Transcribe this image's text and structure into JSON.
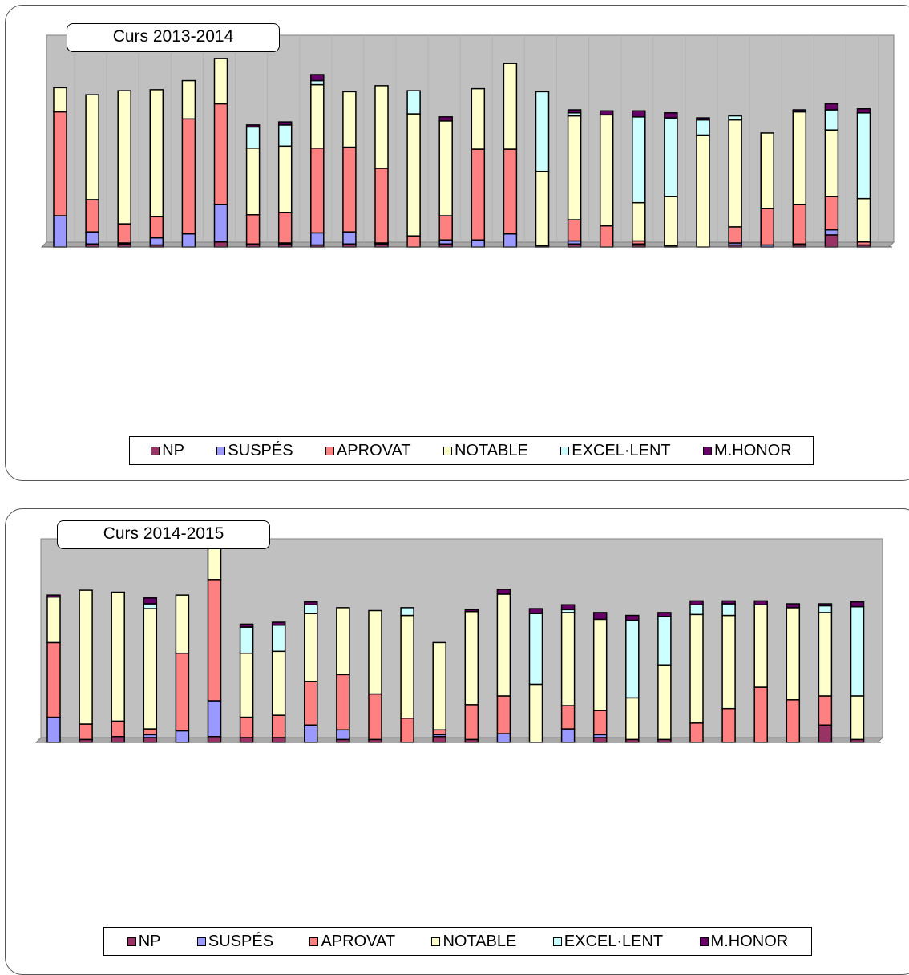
{
  "chart_data": [
    {
      "type": "bar",
      "stacked": true,
      "title": "Curs 2013-2014",
      "legend_position": "bottom",
      "grid": true,
      "ylim": [
        0,
        210
      ],
      "colors": {
        "NP": "#993366",
        "SUSPÉS": "#9999ff",
        "APROVAT": "#ff8080",
        "NOTABLE": "#ffffcc",
        "EXCEL·LENT": "#ccffff",
        "M.HONOR": "#660066"
      },
      "series": [
        {
          "name": "NP",
          "values": [
            0,
            3,
            3,
            2,
            0,
            5,
            3,
            3,
            2,
            3,
            3,
            0,
            3,
            0,
            0,
            0,
            3,
            0,
            2,
            0,
            0,
            2,
            0,
            2,
            12,
            2
          ]
        },
        {
          "name": "SUSPÉS",
          "values": [
            31,
            12,
            1,
            7,
            13,
            37,
            0,
            1,
            12,
            12,
            1,
            0,
            4,
            7,
            13,
            1,
            3,
            0,
            1,
            0,
            0,
            2,
            2,
            1,
            5,
            0
          ]
        },
        {
          "name": "APROVAT",
          "values": [
            103,
            32,
            19,
            21,
            114,
            100,
            29,
            30,
            84,
            84,
            74,
            11,
            24,
            90,
            84,
            0,
            21,
            21,
            3,
            1,
            0,
            16,
            36,
            39,
            33,
            3
          ]
        },
        {
          "name": "NOTABLE",
          "values": [
            24,
            104,
            132,
            126,
            38,
            45,
            66,
            66,
            63,
            55,
            82,
            121,
            94,
            60,
            85,
            74,
            103,
            110,
            38,
            49,
            111,
            106,
            75,
            92,
            66,
            43
          ]
        },
        {
          "name": "EXCEL·LENT",
          "values": [
            0,
            0,
            0,
            0,
            0,
            0,
            21,
            21,
            4,
            0,
            0,
            23,
            0,
            0,
            0,
            79,
            3,
            0,
            85,
            78,
            15,
            4,
            0,
            0,
            20,
            85
          ]
        },
        {
          "name": "M.HONOR",
          "values": [
            0,
            0,
            0,
            0,
            0,
            0,
            2,
            3,
            6,
            0,
            0,
            0,
            4,
            0,
            0,
            0,
            3,
            4,
            6,
            5,
            2,
            0,
            0,
            2,
            6,
            4
          ]
        }
      ]
    },
    {
      "type": "bar",
      "stacked": true,
      "title": "Curs 2014-2015",
      "legend_position": "bottom",
      "grid": false,
      "ylim": [
        0,
        210
      ],
      "colors": {
        "NP": "#993366",
        "SUSPÉS": "#9999ff",
        "APROVAT": "#ff8080",
        "NOTABLE": "#ffffcc",
        "EXCEL·LENT": "#ccffff",
        "M.HONOR": "#660066"
      },
      "series": [
        {
          "name": "NP",
          "values": [
            0,
            3,
            6,
            5,
            0,
            6,
            5,
            5,
            0,
            3,
            3,
            0,
            6,
            3,
            0,
            0,
            0,
            5,
            3,
            3,
            0,
            0,
            0,
            0,
            18,
            3
          ]
        },
        {
          "name": "SUSPÉS",
          "values": [
            26,
            0,
            0,
            3,
            12,
            37,
            0,
            0,
            18,
            10,
            0,
            0,
            2,
            0,
            9,
            0,
            14,
            3,
            0,
            0,
            0,
            0,
            0,
            0,
            0,
            0
          ]
        },
        {
          "name": "APROVAT",
          "values": [
            77,
            16,
            16,
            6,
            80,
            125,
            21,
            23,
            45,
            57,
            47,
            25,
            5,
            36,
            39,
            0,
            24,
            25,
            0,
            0,
            20,
            35,
            57,
            44,
            30,
            0
          ]
        },
        {
          "name": "NOTABLE",
          "values": [
            47,
            138,
            133,
            124,
            60,
            38,
            66,
            66,
            70,
            69,
            86,
            106,
            90,
            96,
            105,
            60,
            96,
            94,
            43,
            77,
            112,
            96,
            85,
            95,
            86,
            45
          ]
        },
        {
          "name": "EXCEL·LENT",
          "values": [
            0,
            0,
            0,
            5,
            0,
            0,
            27,
            27,
            9,
            0,
            0,
            8,
            0,
            0,
            0,
            73,
            3,
            0,
            80,
            50,
            10,
            12,
            0,
            0,
            7,
            92
          ]
        },
        {
          "name": "M.HONOR",
          "values": [
            2,
            0,
            0,
            6,
            0,
            0,
            3,
            3,
            3,
            0,
            0,
            0,
            0,
            2,
            5,
            5,
            5,
            7,
            5,
            4,
            4,
            3,
            4,
            4,
            2,
            5
          ]
        }
      ]
    }
  ]
}
